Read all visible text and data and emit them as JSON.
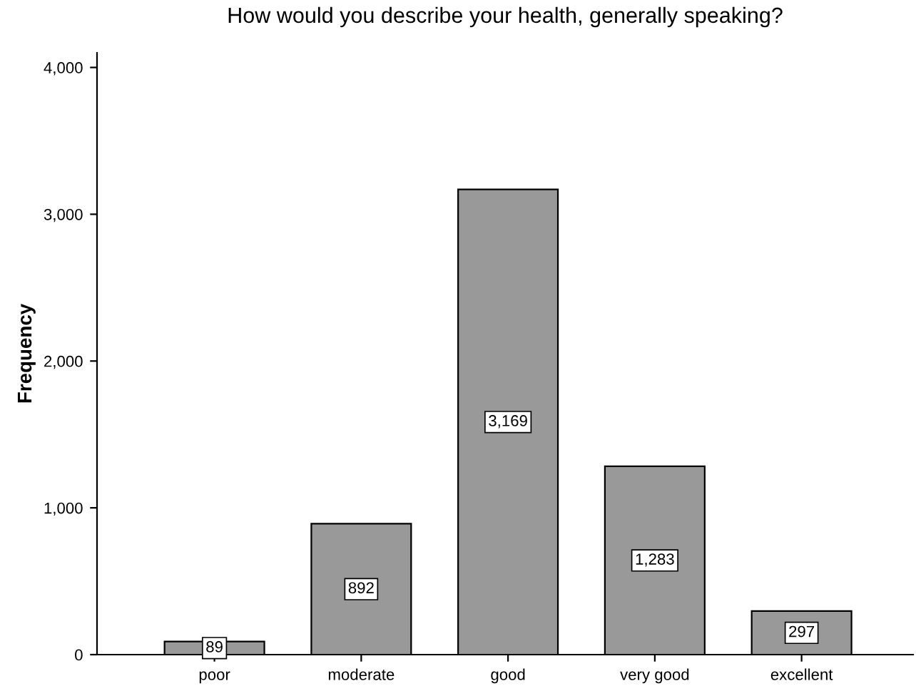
{
  "chart_data": {
    "type": "bar",
    "title": "How would you describe your health, generally speaking?",
    "ylabel": "Frequency",
    "categories": [
      "poor",
      "moderate",
      "good",
      "very good",
      "excellent"
    ],
    "values": [
      89,
      892,
      3169,
      1283,
      297
    ],
    "value_labels": [
      "89",
      "892",
      "3,169",
      "1,283",
      "297"
    ],
    "color": "#999999",
    "ylim": [
      0,
      4100
    ],
    "yticks": [
      {
        "value": 0,
        "label": "0"
      },
      {
        "value": 1000,
        "label": "1,000"
      },
      {
        "value": 2000,
        "label": "2,000"
      },
      {
        "value": 3000,
        "label": "3,000"
      },
      {
        "value": 4000,
        "label": "4,000"
      }
    ],
    "grid": false,
    "legend": false
  }
}
